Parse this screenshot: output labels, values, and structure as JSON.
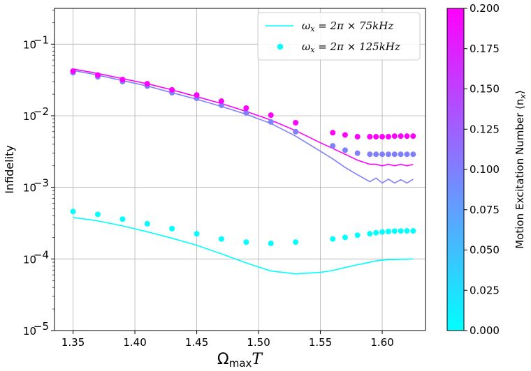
{
  "chart_data": {
    "type": "line+scatter",
    "xlabel": "Ω",
    "xlabel_sub": "max",
    "xlabel_tail": "T",
    "ylabel": "Infidelity",
    "xlim": [
      1.335,
      1.635
    ],
    "ylim_log10": [
      -5,
      -0.5
    ],
    "x_ticks": [
      1.35,
      1.4,
      1.45,
      1.5,
      1.55,
      1.6
    ],
    "x_tick_labels": [
      "1.35",
      "1.40",
      "1.45",
      "1.50",
      "1.55",
      "1.60"
    ],
    "y_ticks_exp": [
      -5,
      -4,
      -3,
      -2,
      -1
    ],
    "y_tick_base": "10",
    "y_tick_exps": [
      "−5",
      "−4",
      "−3",
      "−2",
      "−1"
    ],
    "grid": true,
    "legend": {
      "position": "top-right",
      "entries": [
        {
          "kind": "line",
          "math": "ω",
          "sub": "x",
          "rest": " = 2π × 75kHz"
        },
        {
          "kind": "marker",
          "math": "ω",
          "sub": "x",
          "rest": " = 2π × 125kHz"
        }
      ]
    },
    "colorbar": {
      "label": "Motion Excitation Number ⟨n",
      "label_sub": "x",
      "label_tail": "⟩",
      "min": 0.0,
      "max": 0.2,
      "colors": [
        "#00ffff",
        "#ff00ff"
      ],
      "ticks": [
        0.0,
        0.025,
        0.05,
        0.075,
        0.1,
        0.125,
        0.15,
        0.175,
        0.2
      ],
      "tick_labels": [
        "0.000",
        "0.025",
        "0.050",
        "0.075",
        "0.100",
        "0.125",
        "0.150",
        "0.175",
        "0.200"
      ]
    },
    "lines": [
      {
        "name": "nbar 0 - 75kHz",
        "n": 0.0,
        "x": [
          1.35,
          1.37,
          1.39,
          1.41,
          1.43,
          1.45,
          1.47,
          1.49,
          1.51,
          1.53,
          1.55,
          1.56,
          1.57,
          1.58,
          1.59,
          1.595,
          1.6,
          1.605,
          1.61,
          1.615,
          1.62,
          1.625
        ],
        "y": [
          0.00038,
          0.00034,
          0.00029,
          0.00024,
          0.000195,
          0.000155,
          0.000118,
          8.8e-05,
          6.8e-05,
          6.2e-05,
          6.5e-05,
          6.9e-05,
          7.6e-05,
          8.3e-05,
          9e-05,
          9.4e-05,
          9.6e-05,
          9.8e-05,
          9.8e-05,
          9.9e-05,
          9.9e-05,
          0.0001
        ]
      },
      {
        "name": "nbar 0.1 - 75kHz",
        "n": 0.1,
        "x": [
          1.35,
          1.37,
          1.39,
          1.41,
          1.43,
          1.45,
          1.47,
          1.49,
          1.51,
          1.53,
          1.55,
          1.56,
          1.57,
          1.58,
          1.59,
          1.595,
          1.6,
          1.605,
          1.61,
          1.615,
          1.62,
          1.625
        ],
        "y": [
          0.043,
          0.037,
          0.031,
          0.026,
          0.021,
          0.017,
          0.0135,
          0.0105,
          0.0078,
          0.0052,
          0.0032,
          0.0025,
          0.0019,
          0.0015,
          0.0012,
          0.00135,
          0.00115,
          0.0013,
          0.00115,
          0.00128,
          0.00115,
          0.0013
        ]
      },
      {
        "name": "nbar 0.2 - 75kHz",
        "n": 0.2,
        "x": [
          1.35,
          1.37,
          1.39,
          1.41,
          1.43,
          1.45,
          1.47,
          1.49,
          1.51,
          1.53,
          1.55,
          1.56,
          1.57,
          1.58,
          1.59,
          1.595,
          1.6,
          1.605,
          1.61,
          1.615,
          1.62,
          1.625
        ],
        "y": [
          0.045,
          0.039,
          0.033,
          0.028,
          0.023,
          0.0185,
          0.0148,
          0.0115,
          0.0087,
          0.0062,
          0.0042,
          0.0035,
          0.0029,
          0.0024,
          0.0021,
          0.0021,
          0.002,
          0.0021,
          0.002,
          0.0021,
          0.002,
          0.0021
        ]
      }
    ],
    "scatter": [
      {
        "name": "nbar 0 - 125kHz",
        "n": 0.0,
        "x": [
          1.35,
          1.37,
          1.39,
          1.41,
          1.43,
          1.45,
          1.47,
          1.49,
          1.51,
          1.53,
          1.56,
          1.57,
          1.58,
          1.59,
          1.595,
          1.6,
          1.605,
          1.61,
          1.615,
          1.62,
          1.625
        ],
        "y": [
          0.00046,
          0.00042,
          0.00036,
          0.00031,
          0.000265,
          0.000225,
          0.00019,
          0.000172,
          0.000165,
          0.000172,
          0.00019,
          0.0002,
          0.000215,
          0.000225,
          0.000232,
          0.000238,
          0.000242,
          0.000245,
          0.000246,
          0.000247,
          0.000247
        ]
      },
      {
        "name": "nbar 0.1 - 125kHz",
        "n": 0.1,
        "x": [
          1.35,
          1.37,
          1.39,
          1.41,
          1.43,
          1.45,
          1.47,
          1.49,
          1.51,
          1.53,
          1.56,
          1.57,
          1.58,
          1.59,
          1.595,
          1.6,
          1.605,
          1.61,
          1.615,
          1.62,
          1.625
        ],
        "y": [
          0.04,
          0.035,
          0.03,
          0.026,
          0.021,
          0.0175,
          0.014,
          0.011,
          0.0082,
          0.006,
          0.0038,
          0.0033,
          0.003,
          0.0029,
          0.0029,
          0.0029,
          0.0029,
          0.0029,
          0.0029,
          0.0029,
          0.0029
        ]
      },
      {
        "name": "nbar 0.2 - 125kHz",
        "n": 0.2,
        "x": [
          1.35,
          1.37,
          1.39,
          1.41,
          1.43,
          1.45,
          1.47,
          1.49,
          1.51,
          1.53,
          1.56,
          1.57,
          1.58,
          1.59,
          1.595,
          1.6,
          1.605,
          1.61,
          1.615,
          1.62,
          1.625
        ],
        "y": [
          0.042,
          0.037,
          0.032,
          0.028,
          0.023,
          0.0195,
          0.016,
          0.0128,
          0.0102,
          0.008,
          0.0058,
          0.0054,
          0.0051,
          0.0051,
          0.0051,
          0.0051,
          0.0051,
          0.0052,
          0.0052,
          0.0052,
          0.0052
        ]
      }
    ]
  }
}
